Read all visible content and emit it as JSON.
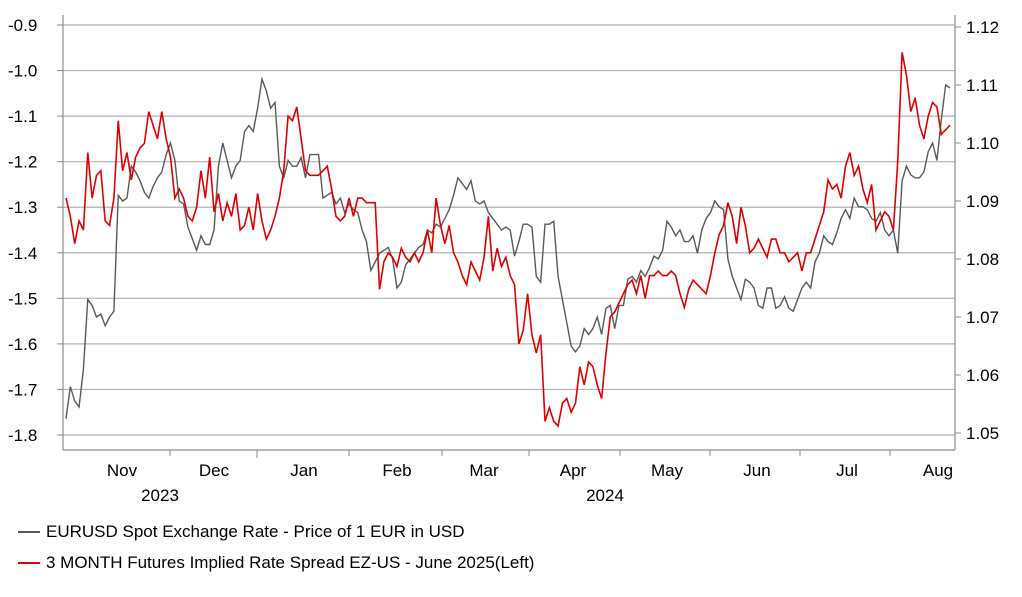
{
  "chart_data": {
    "type": "line",
    "title": "",
    "left_axis": {
      "ylim": [
        -1.8,
        -0.9
      ],
      "ticks": [
        "-0.9",
        "-1.0",
        "-1.1",
        "-1.2",
        "-1.3",
        "-1.4",
        "-1.5",
        "-1.6",
        "-1.7",
        "-1.8"
      ]
    },
    "right_axis": {
      "ylim": [
        1.05,
        1.12
      ],
      "ticks": [
        "1.12",
        "1.11",
        "1.10",
        "1.09",
        "1.08",
        "1.07",
        "1.06",
        "1.05"
      ]
    },
    "x_month_labels": [
      "Nov",
      "Dec",
      "Jan",
      "Feb",
      "Mar",
      "Apr",
      "May",
      "Jun",
      "Jul",
      "Aug"
    ],
    "x_year_labels": [
      "2023",
      "2024"
    ],
    "grid": true,
    "legend_position": "bottom-left",
    "colors": {
      "eurusd": "#595959",
      "spread": "#e00000",
      "grid": "#b3b3b3",
      "axis": "#8c8c8c"
    },
    "series": [
      {
        "name": "EURUSD Spot Exchange Rate - Price of 1 EUR in USD",
        "axis": "right",
        "color": "#595959",
        "values": [
          1.0525,
          1.058,
          1.0555,
          1.0545,
          1.061,
          1.073,
          1.072,
          1.07,
          1.0705,
          1.0685,
          1.07,
          1.071,
          1.091,
          1.09,
          1.0905,
          1.096,
          1.095,
          1.0935,
          1.0915,
          1.0905,
          1.0925,
          1.094,
          1.095,
          1.098,
          1.1,
          1.097,
          1.09,
          1.0895,
          1.0855,
          1.0835,
          1.0815,
          1.084,
          1.0825,
          1.0825,
          1.085,
          1.096,
          1.1,
          1.097,
          1.094,
          1.096,
          1.097,
          1.102,
          1.103,
          1.102,
          1.106,
          1.111,
          1.109,
          1.106,
          1.107,
          1.096,
          1.094,
          1.097,
          1.096,
          1.096,
          1.0975,
          1.094,
          1.098,
          1.098,
          1.098,
          1.0905,
          1.091,
          1.0915,
          1.0895,
          1.0905,
          1.088,
          1.0895,
          1.0885,
          1.088,
          1.085,
          1.083,
          1.078,
          1.0795,
          1.081,
          1.0815,
          1.082,
          1.08,
          1.075,
          1.076,
          1.079,
          1.08,
          1.081,
          1.082,
          1.0825,
          1.085,
          1.0845,
          1.086,
          1.0855,
          1.087,
          1.0885,
          1.091,
          1.094,
          1.093,
          1.092,
          1.0935,
          1.09,
          1.0895,
          1.09,
          1.088,
          1.087,
          1.086,
          1.085,
          1.0855,
          1.085,
          1.0805,
          1.083,
          1.086,
          1.086,
          1.0855,
          1.077,
          1.076,
          1.086,
          1.086,
          1.0865,
          1.077,
          1.073,
          1.069,
          1.065,
          1.064,
          1.065,
          1.068,
          1.067,
          1.068,
          1.07,
          1.067,
          1.0715,
          1.072,
          1.068,
          1.072,
          1.072,
          1.0765,
          1.077,
          1.076,
          1.078,
          1.077,
          1.0785,
          1.0805,
          1.08,
          1.0815,
          1.0865,
          1.0855,
          1.084,
          1.085,
          1.083,
          1.083,
          1.084,
          1.081,
          1.085,
          1.087,
          1.088,
          1.09,
          1.089,
          1.0885,
          1.08,
          1.077,
          1.075,
          1.073,
          1.0765,
          1.076,
          1.075,
          1.072,
          1.0715,
          1.075,
          1.075,
          1.0715,
          1.072,
          1.0735,
          1.0715,
          1.071,
          1.073,
          1.075,
          1.076,
          1.075,
          1.0795,
          1.081,
          1.084,
          1.083,
          1.0825,
          1.0845,
          1.087,
          1.0885,
          1.087,
          1.0905,
          1.089,
          1.089,
          1.0885,
          1.087,
          1.0865,
          1.088,
          1.085,
          1.084,
          1.085,
          1.081,
          1.0935,
          1.096,
          1.0945,
          1.094,
          1.094,
          1.095,
          1.0985,
          1.1,
          1.097,
          1.104,
          1.11,
          1.1095
        ]
      },
      {
        "name": "3 MONTH Futures Implied Rate Spread EZ-US - June 2025(Left)",
        "axis": "left",
        "color": "#e00000",
        "values": [
          -1.28,
          -1.32,
          -1.38,
          -1.33,
          -1.35,
          -1.18,
          -1.28,
          -1.23,
          -1.22,
          -1.33,
          -1.34,
          -1.28,
          -1.11,
          -1.22,
          -1.18,
          -1.24,
          -1.19,
          -1.17,
          -1.16,
          -1.09,
          -1.12,
          -1.15,
          -1.09,
          -1.15,
          -1.19,
          -1.28,
          -1.26,
          -1.28,
          -1.32,
          -1.33,
          -1.3,
          -1.22,
          -1.28,
          -1.19,
          -1.31,
          -1.27,
          -1.33,
          -1.29,
          -1.32,
          -1.27,
          -1.35,
          -1.34,
          -1.3,
          -1.35,
          -1.27,
          -1.33,
          -1.37,
          -1.35,
          -1.32,
          -1.28,
          -1.22,
          -1.1,
          -1.11,
          -1.08,
          -1.15,
          -1.22,
          -1.23,
          -1.23,
          -1.23,
          -1.22,
          -1.21,
          -1.26,
          -1.32,
          -1.33,
          -1.32,
          -1.28,
          -1.32,
          -1.28,
          -1.28,
          -1.29,
          -1.29,
          -1.29,
          -1.48,
          -1.42,
          -1.4,
          -1.41,
          -1.43,
          -1.39,
          -1.41,
          -1.42,
          -1.4,
          -1.42,
          -1.4,
          -1.35,
          -1.4,
          -1.28,
          -1.34,
          -1.38,
          -1.34,
          -1.4,
          -1.42,
          -1.45,
          -1.47,
          -1.42,
          -1.44,
          -1.46,
          -1.41,
          -1.32,
          -1.44,
          -1.39,
          -1.43,
          -1.41,
          -1.45,
          -1.47,
          -1.6,
          -1.57,
          -1.49,
          -1.58,
          -1.62,
          -1.58,
          -1.77,
          -1.74,
          -1.77,
          -1.78,
          -1.73,
          -1.72,
          -1.75,
          -1.73,
          -1.65,
          -1.69,
          -1.64,
          -1.65,
          -1.69,
          -1.72,
          -1.62,
          -1.54,
          -1.53,
          -1.51,
          -1.49,
          -1.47,
          -1.46,
          -1.49,
          -1.45,
          -1.5,
          -1.45,
          -1.45,
          -1.44,
          -1.45,
          -1.45,
          -1.44,
          -1.45,
          -1.49,
          -1.52,
          -1.48,
          -1.46,
          -1.47,
          -1.48,
          -1.49,
          -1.45,
          -1.4,
          -1.36,
          -1.34,
          -1.29,
          -1.32,
          -1.38,
          -1.3,
          -1.34,
          -1.4,
          -1.39,
          -1.37,
          -1.39,
          -1.41,
          -1.37,
          -1.37,
          -1.4,
          -1.4,
          -1.42,
          -1.41,
          -1.4,
          -1.44,
          -1.4,
          -1.4,
          -1.37,
          -1.34,
          -1.31,
          -1.24,
          -1.26,
          -1.25,
          -1.28,
          -1.21,
          -1.18,
          -1.23,
          -1.21,
          -1.26,
          -1.29,
          -1.25,
          -1.35,
          -1.33,
          -1.31,
          -1.32,
          -1.35,
          -1.2,
          -0.96,
          -1.01,
          -1.09,
          -1.06,
          -1.12,
          -1.15,
          -1.1,
          -1.07,
          -1.08,
          -1.14,
          -1.13,
          -1.12
        ]
      }
    ]
  }
}
